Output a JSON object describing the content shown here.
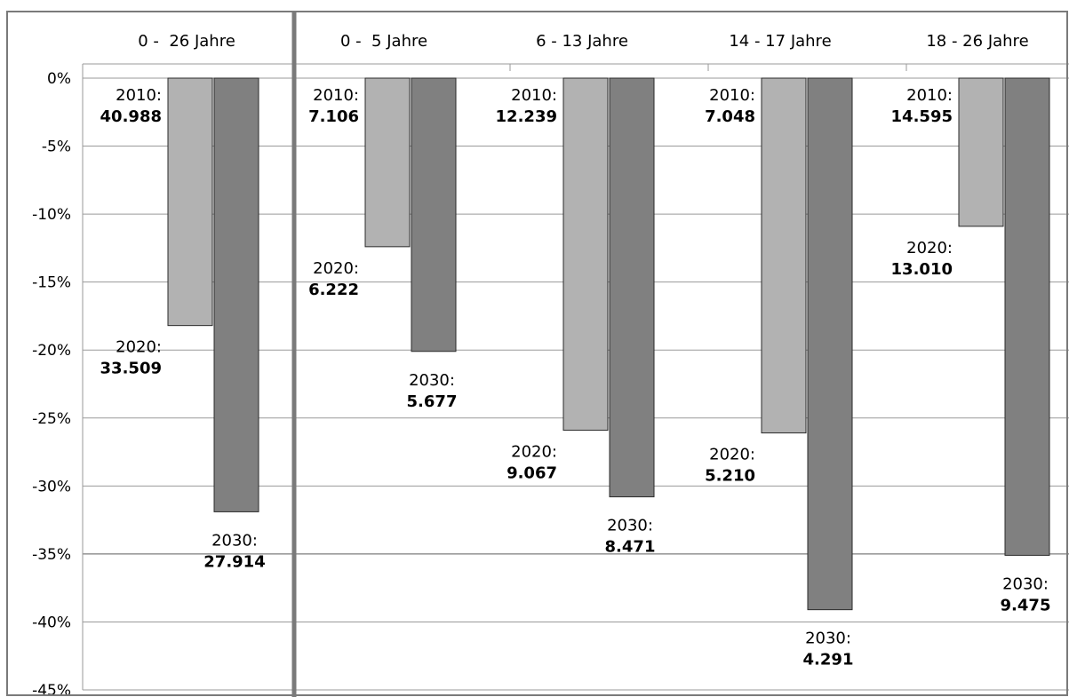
{
  "chart_data": {
    "type": "bar",
    "title": "",
    "xlabel": "",
    "ylabel": "",
    "ylim": [
      -45,
      0
    ],
    "y_ticks": [
      0,
      -5,
      -10,
      -15,
      -20,
      -25,
      -30,
      -35,
      -40,
      -45
    ],
    "y_tick_labels": [
      "0%",
      "-5%",
      "-10%",
      "-15%",
      "-20%",
      "-25%",
      "-30%",
      "-35%",
      "-40%",
      "-45%"
    ],
    "grid": true,
    "legend": "none",
    "categories": [
      "0 -  26 Jahre",
      "0 -  5 Jahre",
      "6 - 13 Jahre",
      "14 - 17 Jahre",
      "18 - 26 Jahre"
    ],
    "series": [
      {
        "color": "#b2b2b2",
        "values": [
          -18.2,
          -12.4,
          -25.9,
          -26.1,
          -10.9
        ]
      },
      {
        "color": "#808080",
        "values": [
          -31.9,
          -20.1,
          -30.8,
          -39.1,
          -35.1
        ]
      }
    ],
    "labels": [
      {
        "year2010": "2010:",
        "val2010": "40.988",
        "year2020": "2020:",
        "val2020": "33.509",
        "year2030": "2030:",
        "val2030": "27.914"
      },
      {
        "year2010": "2010:",
        "val2010": "7.106",
        "year2020": "2020:",
        "val2020": "6.222",
        "year2030": "2030:",
        "val2030": "5.677"
      },
      {
        "year2010": "2010:",
        "val2010": "12.239",
        "year2020": "2020:",
        "val2020": "9.067",
        "year2030": "2030:",
        "val2030": "8.471"
      },
      {
        "year2010": "2010:",
        "val2010": "7.048",
        "year2020": "2020:",
        "val2020": "5.210",
        "year2030": "2030:",
        "val2030": "4.291"
      },
      {
        "year2010": "2010:",
        "val2010": "14.595",
        "year2020": "2020:",
        "val2020": "13.010",
        "year2030": "2030:",
        "val2030": "9.475"
      }
    ]
  }
}
